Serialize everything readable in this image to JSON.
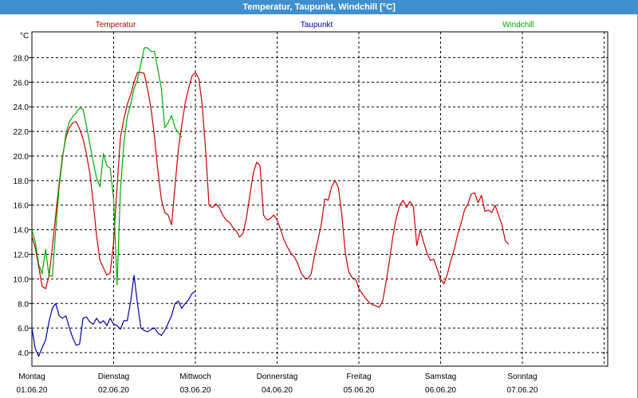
{
  "title": "Temperatur, Taupunkt, Windchill [°C]",
  "chart_data": {
    "type": "line",
    "y_unit": "°C",
    "ylim": [
      2.9,
      30.1
    ],
    "y_ticks": [
      "4.0",
      "6.0",
      "8.0",
      "10.0",
      "12.0",
      "14.0",
      "16.0",
      "18.0",
      "20.0",
      "22.0",
      "24.0",
      "26.0",
      "28.0"
    ],
    "y_tick_values": [
      4,
      6,
      8,
      10,
      12,
      14,
      16,
      18,
      20,
      22,
      24,
      26,
      28
    ],
    "xlim": [
      0,
      168
    ],
    "x_ticks": [
      {
        "day": "Montag",
        "date": "01.06.20",
        "h": 0
      },
      {
        "day": "Dienstag",
        "date": "02.06.20",
        "h": 24
      },
      {
        "day": "Mittwoch",
        "date": "03.06.20",
        "h": 48
      },
      {
        "day": "Donnerstag",
        "date": "04.06.20",
        "h": 72
      },
      {
        "day": "Freitag",
        "date": "05.06.20",
        "h": 96
      },
      {
        "day": "Samstag",
        "date": "06.06.20",
        "h": 120
      },
      {
        "day": "Sonntag",
        "date": "07.06.20",
        "h": 144
      }
    ],
    "x_ticks_extra_grid_h": [
      168
    ],
    "grid": "dashed",
    "series": [
      {
        "name": "Temperatur",
        "color": "#cc0000",
        "points": [
          [
            0,
            13.5
          ],
          [
            1,
            12.5
          ],
          [
            2,
            11
          ],
          [
            3,
            9.4
          ],
          [
            4,
            9.2
          ],
          [
            5,
            10.2
          ],
          [
            6,
            12.5
          ],
          [
            7,
            15.2
          ],
          [
            8,
            17.8
          ],
          [
            9,
            20
          ],
          [
            10,
            21.5
          ],
          [
            11,
            22.3
          ],
          [
            12,
            22.7
          ],
          [
            13,
            22.8
          ],
          [
            14,
            22.2
          ],
          [
            15,
            21.4
          ],
          [
            16,
            20.2
          ],
          [
            17,
            18.6
          ],
          [
            18,
            16.2
          ],
          [
            19,
            13.5
          ],
          [
            20,
            11.5
          ],
          [
            21,
            10.9
          ],
          [
            22,
            10.3
          ],
          [
            23,
            10.5
          ],
          [
            24,
            13
          ],
          [
            25,
            17.5
          ],
          [
            26,
            21.5
          ],
          [
            27,
            23
          ],
          [
            28,
            24.2
          ],
          [
            29,
            25
          ],
          [
            30,
            26
          ],
          [
            31,
            26.8
          ],
          [
            32,
            26.8
          ],
          [
            33,
            26.7
          ],
          [
            34,
            25.4
          ],
          [
            35,
            23.8
          ],
          [
            36,
            21.5
          ],
          [
            37,
            18.8
          ],
          [
            38,
            16.5
          ],
          [
            39,
            15.4
          ],
          [
            40,
            15.2
          ],
          [
            41,
            14.4
          ],
          [
            42,
            17.5
          ],
          [
            43,
            20.5
          ],
          [
            44,
            22.5
          ],
          [
            45,
            24.3
          ],
          [
            46,
            25.5
          ],
          [
            47,
            26.5
          ],
          [
            48,
            26.8
          ],
          [
            49,
            26.3
          ],
          [
            50,
            24.2
          ],
          [
            51,
            20.5
          ],
          [
            52,
            16
          ],
          [
            53,
            15.8
          ],
          [
            54,
            16.1
          ],
          [
            55,
            15.8
          ],
          [
            56,
            15.2
          ],
          [
            57,
            14.8
          ],
          [
            58,
            14.6
          ],
          [
            59,
            14.2
          ],
          [
            60,
            13.9
          ],
          [
            61,
            13.4
          ],
          [
            62,
            13.7
          ],
          [
            63,
            15
          ],
          [
            64,
            16.8
          ],
          [
            65,
            18.6
          ],
          [
            66,
            19.5
          ],
          [
            67,
            19.2
          ],
          [
            68,
            15.2
          ],
          [
            69,
            14.8
          ],
          [
            70,
            14.9
          ],
          [
            71,
            15.2
          ],
          [
            72,
            14.8
          ],
          [
            73,
            14
          ],
          [
            74,
            13.2
          ],
          [
            75,
            12.6
          ],
          [
            76,
            12.1
          ],
          [
            77,
            11.8
          ],
          [
            78,
            11.3
          ],
          [
            79,
            10.5
          ],
          [
            80,
            10.1
          ],
          [
            81,
            10
          ],
          [
            82,
            10.4
          ],
          [
            83,
            12
          ],
          [
            84,
            13.2
          ],
          [
            85,
            14.5
          ],
          [
            86,
            16.5
          ],
          [
            87,
            16.4
          ],
          [
            88,
            17.5
          ],
          [
            89,
            18
          ],
          [
            90,
            17.4
          ],
          [
            91,
            15.2
          ],
          [
            92,
            12.2
          ],
          [
            93,
            10.6
          ],
          [
            94,
            10.1
          ],
          [
            95,
            10
          ],
          [
            96,
            9.2
          ],
          [
            97,
            8.8
          ],
          [
            98,
            8.4
          ],
          [
            99,
            8.1
          ],
          [
            100,
            7.9
          ],
          [
            101,
            7.8
          ],
          [
            102,
            7.7
          ],
          [
            103,
            8.2
          ],
          [
            104,
            9.8
          ],
          [
            105,
            11.5
          ],
          [
            106,
            13.5
          ],
          [
            107,
            15
          ],
          [
            108,
            16
          ],
          [
            109,
            16.4
          ],
          [
            110,
            15.8
          ],
          [
            111,
            16.3
          ],
          [
            112,
            15.9
          ],
          [
            113,
            12.7
          ],
          [
            114,
            14
          ],
          [
            115,
            13
          ],
          [
            116,
            12.1
          ],
          [
            117,
            11.5
          ],
          [
            118,
            11.6
          ],
          [
            119,
            10.8
          ],
          [
            120,
            10
          ],
          [
            121,
            9.6
          ],
          [
            122,
            10.4
          ],
          [
            123,
            11.5
          ],
          [
            124,
            12.4
          ],
          [
            125,
            13.6
          ],
          [
            126,
            14.5
          ],
          [
            127,
            15.6
          ],
          [
            128,
            16.1
          ],
          [
            129,
            16.9
          ],
          [
            130,
            17
          ],
          [
            131,
            16.2
          ],
          [
            132,
            16.8
          ],
          [
            133,
            15.5
          ],
          [
            134,
            15.6
          ],
          [
            135,
            15.4
          ],
          [
            136,
            16
          ],
          [
            137,
            15.2
          ],
          [
            138,
            14.4
          ],
          [
            139,
            13.1
          ],
          [
            140,
            12.8
          ]
        ]
      },
      {
        "name": "Taupunkt",
        "color": "#0000aa",
        "points": [
          [
            0,
            6
          ],
          [
            1,
            4.3
          ],
          [
            2,
            3.7
          ],
          [
            3,
            4.4
          ],
          [
            4,
            5
          ],
          [
            5,
            6.5
          ],
          [
            6,
            7.6
          ],
          [
            7,
            8
          ],
          [
            8,
            7
          ],
          [
            9,
            6.8
          ],
          [
            10,
            7
          ],
          [
            11,
            6
          ],
          [
            12,
            5.2
          ],
          [
            13,
            4.6
          ],
          [
            14,
            4.7
          ],
          [
            15,
            6.8
          ],
          [
            16,
            6.9
          ],
          [
            17,
            6.5
          ],
          [
            18,
            6.3
          ],
          [
            19,
            6.8
          ],
          [
            20,
            6.4
          ],
          [
            21,
            6.6
          ],
          [
            22,
            6.2
          ],
          [
            23,
            6.8
          ],
          [
            24,
            6.3
          ],
          [
            25,
            6.2
          ],
          [
            26,
            5.9
          ],
          [
            27,
            6.6
          ],
          [
            28,
            6.6
          ],
          [
            29,
            8.2
          ],
          [
            30,
            10.3
          ],
          [
            31,
            8
          ],
          [
            32,
            6
          ],
          [
            33,
            5.8
          ],
          [
            34,
            5.7
          ],
          [
            35,
            5.9
          ],
          [
            36,
            6
          ],
          [
            37,
            5.6
          ],
          [
            38,
            5.4
          ],
          [
            39,
            5.8
          ],
          [
            40,
            6.4
          ],
          [
            41,
            7
          ],
          [
            42,
            8
          ],
          [
            43,
            8.2
          ],
          [
            44,
            7.6
          ],
          [
            45,
            8
          ],
          [
            46,
            8.3
          ],
          [
            47,
            8.8
          ],
          [
            48,
            9
          ]
        ]
      },
      {
        "name": "Windchill",
        "color": "#00aa00",
        "points": [
          [
            0,
            14
          ],
          [
            1,
            13
          ],
          [
            2,
            11.2
          ],
          [
            3,
            10.4
          ],
          [
            4,
            12.4
          ],
          [
            5,
            10.3
          ],
          [
            6,
            10.2
          ],
          [
            7,
            14
          ],
          [
            8,
            17.5
          ],
          [
            9,
            19.8
          ],
          [
            10,
            21.8
          ],
          [
            11,
            22.8
          ],
          [
            12,
            23.2
          ],
          [
            13,
            23.5
          ],
          [
            14,
            23.9
          ],
          [
            15,
            23.8
          ],
          [
            16,
            22.5
          ],
          [
            17,
            21
          ],
          [
            18,
            19.5
          ],
          [
            19,
            18.2
          ],
          [
            20,
            17.5
          ],
          [
            21,
            20.2
          ],
          [
            22,
            19.2
          ],
          [
            23,
            19
          ],
          [
            24,
            16.5
          ],
          [
            25,
            9.5
          ],
          [
            26,
            17.2
          ],
          [
            27,
            21
          ],
          [
            28,
            23.2
          ],
          [
            29,
            24.2
          ],
          [
            30,
            25.5
          ],
          [
            31,
            26.2
          ],
          [
            32,
            27.5
          ],
          [
            33,
            28.8
          ],
          [
            34,
            28.8
          ],
          [
            35,
            28.5
          ],
          [
            36,
            28.5
          ],
          [
            37,
            27
          ],
          [
            38,
            25.5
          ],
          [
            39,
            22.3
          ],
          [
            40,
            22.7
          ],
          [
            41,
            23.3
          ],
          [
            42,
            22.3
          ],
          [
            43,
            21.9
          ],
          [
            44,
            21.5
          ]
        ]
      }
    ]
  }
}
